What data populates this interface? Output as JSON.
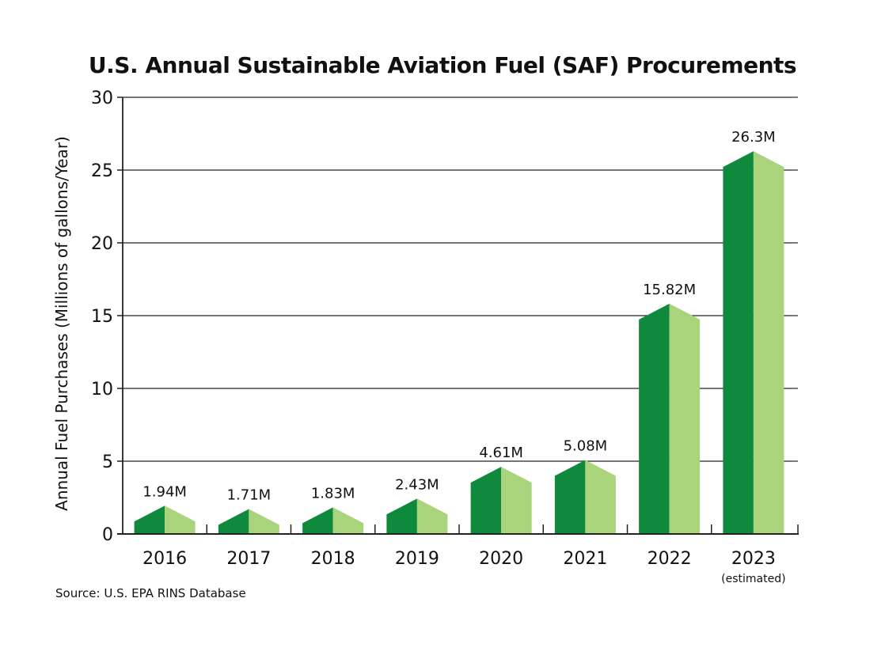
{
  "chart_data": {
    "type": "bar",
    "title": "U.S. Annual Sustainable Aviation Fuel (SAF) Procurements",
    "ylabel": "Annual Fuel Purchases (Millions of gallons/Year)",
    "xlabel": "",
    "categories": [
      "2016",
      "2017",
      "2018",
      "2019",
      "2020",
      "2021",
      "2022",
      "2023"
    ],
    "category_notes": [
      "",
      "",
      "",
      "",
      "",
      "",
      "",
      "(estimated)"
    ],
    "values": [
      1.94,
      1.71,
      1.83,
      2.43,
      4.61,
      5.08,
      15.82,
      26.3
    ],
    "data_labels": [
      "1.94M",
      "1.71M",
      "1.83M",
      "2.43M",
      "4.61M",
      "5.08M",
      "15.82M",
      "26.3M"
    ],
    "ylim": [
      0,
      30
    ],
    "yticks": [
      0,
      5,
      10,
      15,
      20,
      25,
      30
    ],
    "grid": true,
    "colors": {
      "bar_dark": "#0f8a3c",
      "bar_light": "#a9d47b",
      "axis": "#222222"
    }
  },
  "source": "Source: U.S. EPA RINS Database"
}
